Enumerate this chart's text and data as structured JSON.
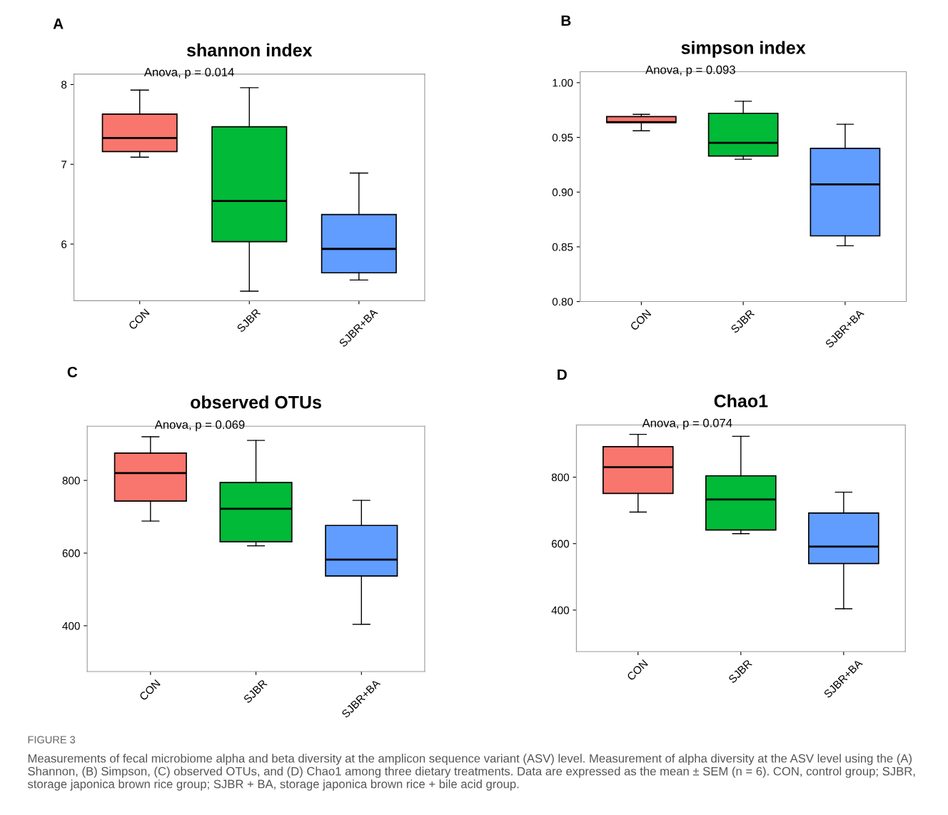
{
  "chart_data": [
    {
      "type": "box",
      "title": "shannon index",
      "categories": [
        "CON",
        "SJBR",
        "SJBR+BA"
      ],
      "colors": [
        "#f8766d",
        "#00ba38",
        "#619cff"
      ],
      "boxes": [
        {
          "low": 7.09,
          "q1": 7.16,
          "median": 7.33,
          "q3": 7.63,
          "high": 7.93
        },
        {
          "low": 5.41,
          "q1": 6.03,
          "median": 6.54,
          "q3": 7.47,
          "high": 7.96
        },
        {
          "low": 5.55,
          "q1": 5.64,
          "median": 5.94,
          "q3": 6.37,
          "high": 6.89
        }
      ],
      "ylim": [
        5.29,
        8.13
      ],
      "yticks": [
        6,
        7,
        8
      ],
      "grid": false,
      "legend": false,
      "annotations": [
        "A",
        "Anova, p = 0.014"
      ]
    },
    {
      "type": "box",
      "title": "simpson index",
      "categories": [
        "CON",
        "SJBR",
        "SJBR+BA"
      ],
      "colors": [
        "#f8766d",
        "#00ba38",
        "#619cff"
      ],
      "boxes": [
        {
          "low": 0.956,
          "q1": 0.9636,
          "median": 0.964,
          "q3": 0.969,
          "high": 0.971
        },
        {
          "low": 0.93,
          "q1": 0.933,
          "median": 0.945,
          "q3": 0.972,
          "high": 0.983
        },
        {
          "low": 0.851,
          "q1": 0.86,
          "median": 0.907,
          "q3": 0.94,
          "high": 0.962
        }
      ],
      "ylim": [
        0.8,
        1.01
      ],
      "yticks": [
        {
          "value": 0.8,
          "label": "0.80"
        },
        {
          "value": 0.85,
          "label": "0.85"
        },
        {
          "value": 0.9,
          "label": "0.90"
        },
        {
          "value": 0.95,
          "label": "0.95"
        },
        {
          "value": 1.0,
          "label": "1.00"
        }
      ],
      "grid": false,
      "legend": false,
      "annotations": [
        "B",
        "Anova, p = 0.093"
      ]
    },
    {
      "type": "box",
      "title": "observed OTUs",
      "categories": [
        "CON",
        "SJBR",
        "SJBR+BA"
      ],
      "colors": [
        "#f8766d",
        "#00ba38",
        "#619cff"
      ],
      "boxes": [
        {
          "low": 688,
          "q1": 743,
          "median": 820,
          "q3": 875,
          "high": 920
        },
        {
          "low": 620,
          "q1": 631,
          "median": 722,
          "q3": 794,
          "high": 910
        },
        {
          "low": 404,
          "q1": 537,
          "median": 582,
          "q3": 676,
          "high": 745
        }
      ],
      "ylim": [
        274,
        949
      ],
      "yticks": [
        400,
        600,
        800
      ],
      "grid": false,
      "legend": false,
      "annotations": [
        "C",
        "Anova, p = 0.069"
      ]
    },
    {
      "type": "box",
      "title": "Chao1",
      "categories": [
        "CON",
        "SJBR",
        "SJBR+BA"
      ],
      "colors": [
        "#f8766d",
        "#00ba38",
        "#619cff"
      ],
      "boxes": [
        {
          "low": 695,
          "q1": 751,
          "median": 830,
          "q3": 892,
          "high": 929
        },
        {
          "low": 630,
          "q1": 641,
          "median": 733,
          "q3": 804,
          "high": 923
        },
        {
          "low": 404,
          "q1": 540,
          "median": 591,
          "q3": 692,
          "high": 755
        }
      ],
      "ylim": [
        275,
        957
      ],
      "yticks": [
        400,
        600,
        800
      ],
      "grid": false,
      "legend": false,
      "annotations": [
        "D",
        "Anova, p = 0.074",
        "FIGURE 3",
        "Measurements of fecal microbiome alpha and beta diversity at the amplicon sequence variant (ASV) level. Measurement of alpha diversity at the ASV level using the (A) Shannon, (B) Simpson, (C) observed OTUs, and (D) Chao1 among three dietary treatments. Data are expressed as the mean ± SEM (n = 6). CON, control group; SJBR, storage japonica brown rice group; SJBR + BA, storage japonica brown rice + bile acid group."
      ]
    }
  ]
}
